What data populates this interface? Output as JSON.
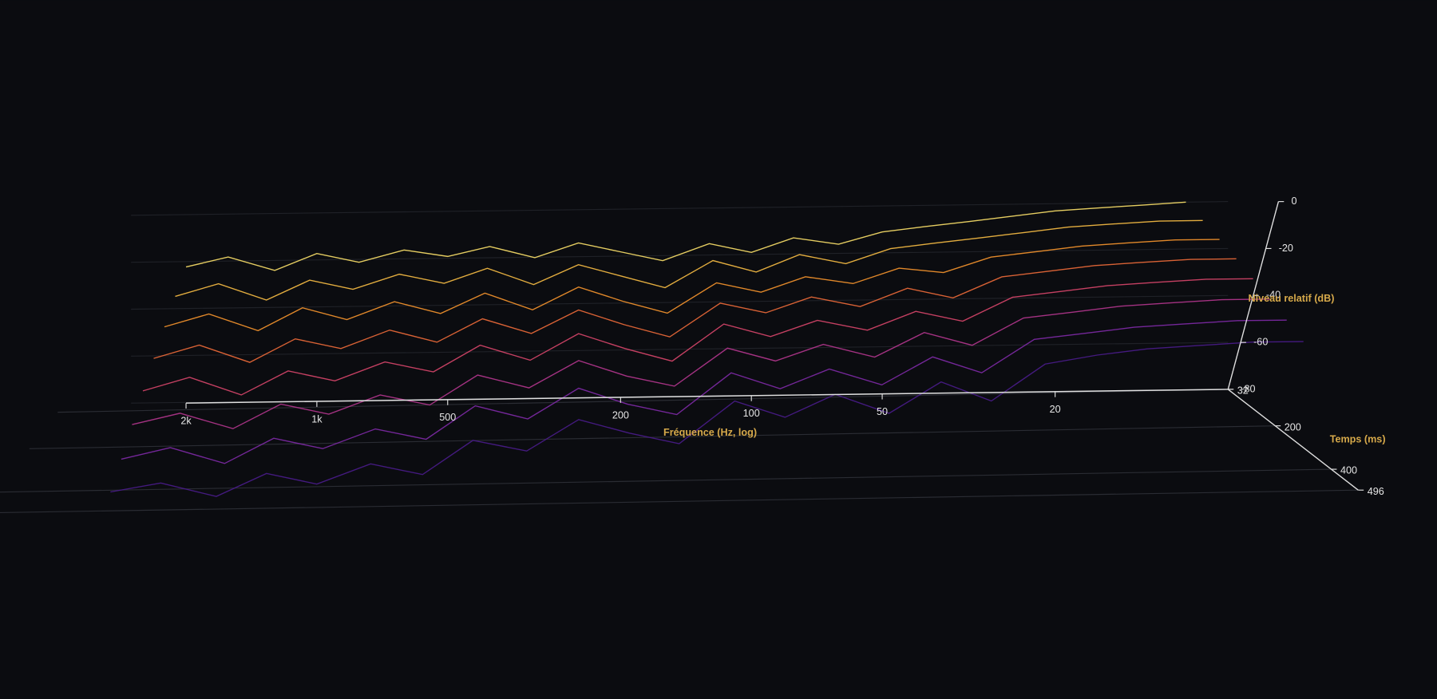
{
  "chart_data": {
    "type": "waterfall3d",
    "x_label": "Fréquence (Hz, log)",
    "y_label": "Niveau relatif (dB)",
    "z_label": "Temps (ms)",
    "x_scale": "log",
    "x": [
      2000,
      1600,
      1250,
      1000,
      800,
      630,
      500,
      400,
      315,
      250,
      200,
      160,
      125,
      100,
      80,
      63,
      50,
      40,
      31.5,
      25,
      20,
      16,
      12.5,
      10
    ],
    "xlim": [
      2000,
      8
    ],
    "xticks": [
      {
        "value": 2000,
        "label": "2k"
      },
      {
        "value": 1000,
        "label": "1k"
      },
      500,
      200,
      100,
      50,
      20
    ],
    "ylim": [
      -80,
      0
    ],
    "yticks": [
      0,
      -20,
      -40,
      -60,
      -80
    ],
    "zlim": [
      32,
      496
    ],
    "zticks": [
      32,
      200,
      400,
      496
    ],
    "series": [
      {
        "t": 32,
        "color": "#fde26a",
        "values": [
          -22,
          -18,
          -24,
          -17,
          -21,
          -16,
          -19,
          -15,
          -20,
          -14,
          -18,
          -22,
          -15,
          -19,
          -13,
          -16,
          -11,
          -9,
          -7,
          -5,
          -3,
          -2,
          -1,
          0
        ]
      },
      {
        "t": 96,
        "color": "#fbbf45",
        "values": [
          -30,
          -25,
          -32,
          -24,
          -28,
          -22,
          -26,
          -20,
          -27,
          -19,
          -24,
          -29,
          -18,
          -23,
          -16,
          -20,
          -14,
          -12,
          -10,
          -8,
          -6,
          -5,
          -4,
          -4
        ]
      },
      {
        "t": 160,
        "color": "#f8962e",
        "values": [
          -38,
          -33,
          -40,
          -31,
          -36,
          -29,
          -34,
          -26,
          -33,
          -24,
          -30,
          -35,
          -23,
          -27,
          -21,
          -24,
          -18,
          -20,
          -14,
          -12,
          -10,
          -9,
          -8,
          -8
        ]
      },
      {
        "t": 224,
        "color": "#ef6b3a",
        "values": [
          -46,
          -41,
          -48,
          -39,
          -43,
          -36,
          -41,
          -32,
          -38,
          -29,
          -35,
          -40,
          -27,
          -31,
          -25,
          -29,
          -22,
          -26,
          -18,
          -16,
          -14,
          -13,
          -12,
          -12
        ]
      },
      {
        "t": 288,
        "color": "#d9466b",
        "values": [
          -54,
          -49,
          -56,
          -47,
          -51,
          -44,
          -48,
          -38,
          -44,
          -34,
          -40,
          -45,
          -31,
          -36,
          -30,
          -34,
          -27,
          -31,
          -22,
          -20,
          -18,
          -17,
          -16,
          -16
        ]
      },
      {
        "t": 352,
        "color": "#b5368f",
        "values": [
          -62,
          -58,
          -64,
          -55,
          -59,
          -52,
          -56,
          -45,
          -50,
          -40,
          -46,
          -50,
          -36,
          -41,
          -35,
          -40,
          -31,
          -36,
          -26,
          -24,
          -22,
          -21,
          -20,
          -20
        ]
      },
      {
        "t": 416,
        "color": "#7f2aa8",
        "values": [
          -70,
          -66,
          -72,
          -63,
          -67,
          -60,
          -64,
          -52,
          -57,
          -46,
          -52,
          -56,
          -41,
          -47,
          -40,
          -46,
          -36,
          -42,
          -30,
          -28,
          -26,
          -25,
          -24,
          -24
        ]
      },
      {
        "t": 480,
        "color": "#4a1c8c",
        "values": [
          -77,
          -74,
          -79,
          -71,
          -75,
          -68,
          -72,
          -60,
          -64,
          -53,
          -58,
          -62,
          -47,
          -53,
          -45,
          -52,
          -41,
          -48,
          -35,
          -32,
          -30,
          -29,
          -28,
          -28
        ]
      }
    ]
  }
}
